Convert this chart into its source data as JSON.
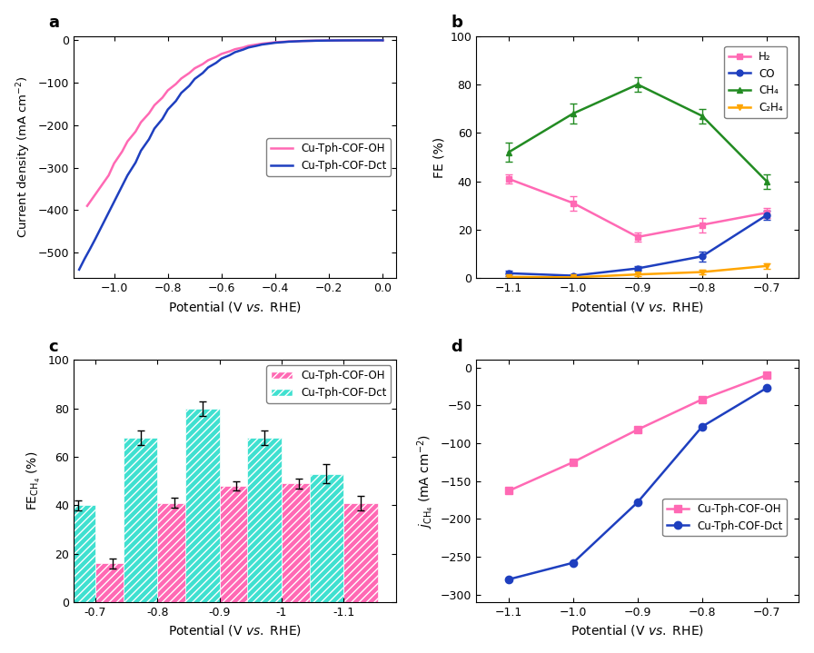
{
  "panel_a": {
    "label": "a",
    "colors": [
      "#FF69B4",
      "#1E3FBF"
    ],
    "legend": [
      "Cu-Tph-COF-OH",
      "Cu-Tph-COF-Dct"
    ],
    "ylim": [
      -560,
      10
    ],
    "xlim": [
      -1.15,
      0.05
    ],
    "xticks": [
      -1.0,
      -0.8,
      -0.6,
      -0.4,
      -0.2,
      0.0
    ],
    "yticks": [
      0,
      -100,
      -200,
      -300,
      -400,
      -500
    ],
    "oh_x": [
      -1.1,
      -1.05,
      -1.02,
      -1.0,
      -0.97,
      -0.95,
      -0.92,
      -0.9,
      -0.87,
      -0.85,
      -0.82,
      -0.8,
      -0.77,
      -0.75,
      -0.72,
      -0.7,
      -0.67,
      -0.65,
      -0.62,
      -0.6,
      -0.57,
      -0.55,
      -0.52,
      -0.5,
      -0.47,
      -0.45,
      -0.42,
      -0.4,
      -0.37,
      -0.35,
      -0.32,
      -0.3,
      -0.27,
      -0.25,
      -0.22,
      -0.2,
      -0.17,
      -0.15,
      -0.12,
      -0.1,
      -0.07,
      -0.05,
      -0.02,
      0.0
    ],
    "oh_y": [
      -390,
      -345,
      -318,
      -290,
      -262,
      -238,
      -215,
      -193,
      -172,
      -153,
      -135,
      -118,
      -103,
      -90,
      -77,
      -66,
      -56,
      -47,
      -39,
      -32,
      -26,
      -21,
      -17,
      -13,
      -10,
      -8,
      -6,
      -4.5,
      -3.5,
      -2.7,
      -2.1,
      -1.6,
      -1.2,
      -0.9,
      -0.7,
      -0.5,
      -0.35,
      -0.25,
      -0.18,
      -0.12,
      -0.08,
      -0.05,
      -0.02,
      0.0
    ],
    "dct_x": [
      -1.13,
      -1.11,
      -1.09,
      -1.07,
      -1.05,
      -1.03,
      -1.01,
      -0.99,
      -0.97,
      -0.95,
      -0.92,
      -0.9,
      -0.87,
      -0.85,
      -0.82,
      -0.8,
      -0.77,
      -0.75,
      -0.72,
      -0.7,
      -0.67,
      -0.65,
      -0.62,
      -0.6,
      -0.57,
      -0.55,
      -0.52,
      -0.5,
      -0.47,
      -0.45,
      -0.42,
      -0.4,
      -0.37,
      -0.35,
      -0.32,
      -0.3,
      -0.27,
      -0.25,
      -0.22,
      -0.2,
      -0.17,
      -0.15,
      -0.12,
      -0.1,
      -0.07,
      -0.05,
      -0.02,
      0.0
    ],
    "dct_y": [
      -540,
      -515,
      -492,
      -468,
      -443,
      -418,
      -393,
      -368,
      -343,
      -318,
      -288,
      -260,
      -233,
      -208,
      -185,
      -163,
      -143,
      -124,
      -107,
      -91,
      -77,
      -64,
      -53,
      -43,
      -35,
      -28,
      -22,
      -17,
      -13,
      -10,
      -7.5,
      -5.7,
      -4.3,
      -3.2,
      -2.4,
      -1.8,
      -1.3,
      -0.95,
      -0.7,
      -0.5,
      -0.35,
      -0.25,
      -0.17,
      -0.12,
      -0.08,
      -0.05,
      -0.03,
      0.0
    ]
  },
  "panel_b": {
    "label": "b",
    "ylim": [
      0,
      100
    ],
    "xlim": [
      -1.15,
      -0.65
    ],
    "xticks": [
      -1.1,
      -1.0,
      -0.9,
      -0.8,
      -0.7
    ],
    "yticks": [
      0,
      20,
      40,
      60,
      80,
      100
    ],
    "x": [
      -1.1,
      -1.0,
      -0.9,
      -0.8,
      -0.7
    ],
    "H2": [
      41,
      31,
      17,
      22,
      27
    ],
    "H2_err": [
      2,
      3,
      2,
      3,
      2
    ],
    "CO": [
      2,
      1,
      4,
      9,
      26
    ],
    "CO_err": [
      1,
      0.5,
      1,
      2,
      2
    ],
    "CH4": [
      52,
      68,
      80,
      67,
      40
    ],
    "CH4_err": [
      4,
      4,
      3,
      3,
      3
    ],
    "C2H4": [
      0.5,
      0.3,
      1.5,
      2.5,
      5
    ],
    "C2H4_err": [
      0.3,
      0.2,
      0.5,
      1,
      1
    ],
    "colors": [
      "#FF69B4",
      "#1E3FBF",
      "#228B22",
      "#FFA500"
    ],
    "legend": [
      "H₂",
      "CO",
      "CH₄",
      "C₂H₄"
    ]
  },
  "panel_c": {
    "label": "c",
    "ylim": [
      0,
      100
    ],
    "xtick_positions": [
      -0.7,
      -0.8,
      -0.9,
      -1.0,
      -1.1
    ],
    "x_labels": [
      "-0.7",
      "-0.8",
      "-0.9",
      "-1",
      "-1.1"
    ],
    "yticks": [
      0,
      20,
      40,
      60,
      80,
      100
    ],
    "oh_vals": [
      16,
      41,
      48,
      49,
      41
    ],
    "oh_errs": [
      2,
      2,
      2,
      2,
      3
    ],
    "dct_vals": [
      40,
      68,
      80,
      68,
      53
    ],
    "dct_errs": [
      2,
      3,
      3,
      3,
      4
    ],
    "oh_color": "#FF69B4",
    "dct_color": "#40E0D0",
    "legend": [
      "Cu-Tph-COF-OH",
      "Cu-Tph-COF-Dct"
    ],
    "bar_width": 0.055
  },
  "panel_d": {
    "label": "d",
    "ylim": [
      -310,
      10
    ],
    "xlim": [
      -1.15,
      -0.65
    ],
    "xticks": [
      -1.1,
      -1.0,
      -0.9,
      -0.8,
      -0.7
    ],
    "yticks": [
      0,
      -50,
      -100,
      -150,
      -200,
      -250,
      -300
    ],
    "x": [
      -1.1,
      -1.0,
      -0.9,
      -0.8,
      -0.7
    ],
    "oh_vals": [
      -163,
      -125,
      -82,
      -42,
      -10
    ],
    "dct_vals": [
      -280,
      -258,
      -178,
      -78,
      -27
    ],
    "oh_color": "#FF69B4",
    "dct_color": "#1E3FBF",
    "legend": [
      "Cu-Tph-COF-OH",
      "Cu-Tph-COF-Dct"
    ]
  }
}
